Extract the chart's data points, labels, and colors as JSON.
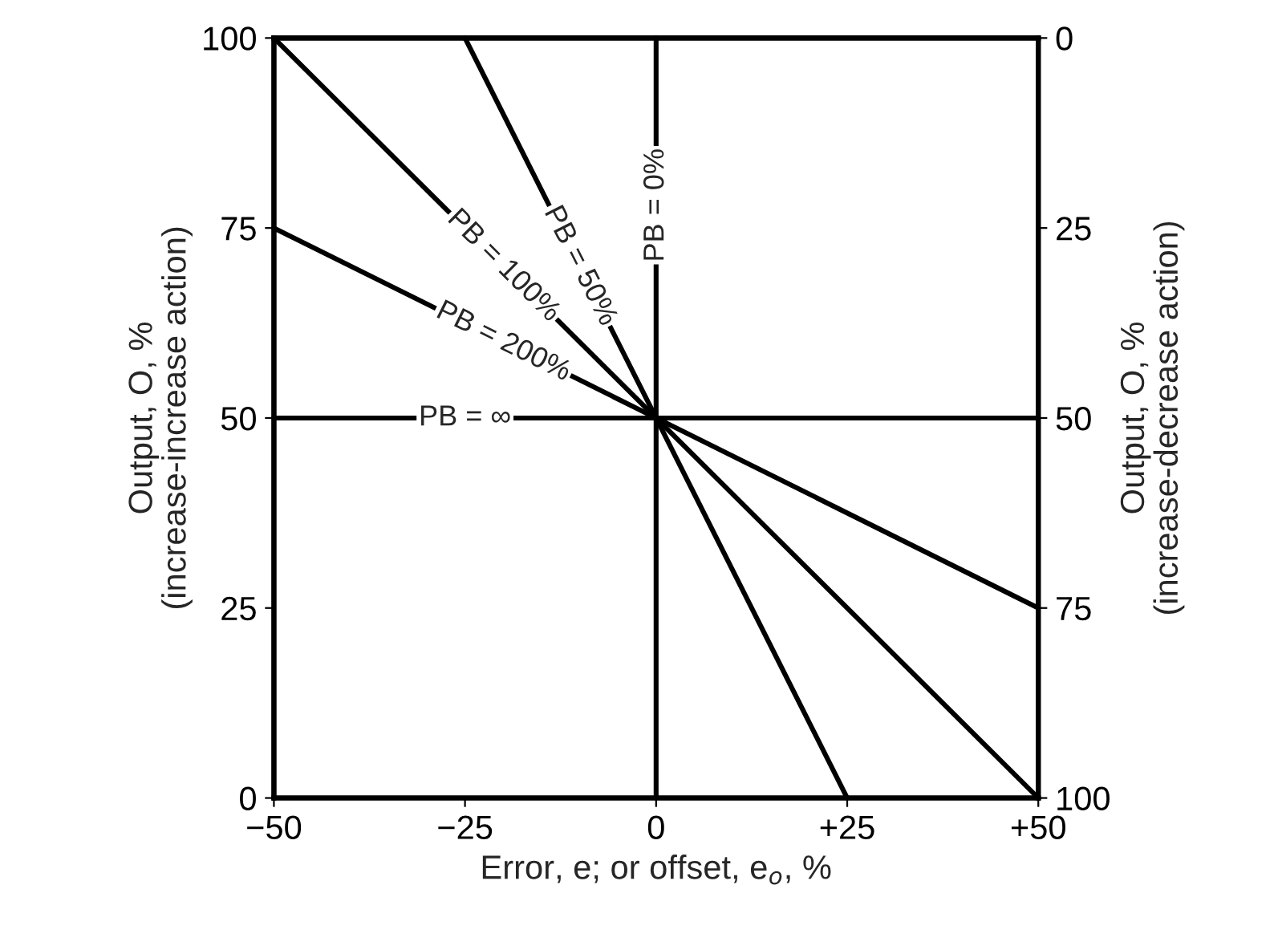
{
  "chart_data": {
    "type": "line",
    "xlabel": "Error, e; or offset, e$_{o}$, %",
    "ylabel": "Output, O, %\n(increase-increase action)",
    "y2label": "Output, O, %\n(increase-decrease action)",
    "xlim": [
      -50,
      50
    ],
    "xticks": [
      {
        "value": -50,
        "label": "−50"
      },
      {
        "value": -25,
        "label": "−25"
      },
      0,
      {
        "value": 25,
        "label": "+25"
      },
      {
        "value": 50,
        "label": "+50"
      }
    ],
    "ylim": [
      0,
      100
    ],
    "yticks": [
      0,
      25,
      50,
      75,
      100
    ],
    "y2lim": [
      100,
      0
    ],
    "y2ticks": [
      0,
      25,
      50,
      75,
      100
    ],
    "grid": false,
    "legend": false,
    "marker": "none",
    "line_style": "solid",
    "series": [
      {
        "name": "PB = 50%",
        "color": "#000000",
        "x": [
          -25,
          25
        ],
        "values": [
          100,
          0
        ]
      },
      {
        "name": "PB = 100%",
        "color": "#000000",
        "x": [
          -50,
          50
        ],
        "values": [
          100,
          0
        ]
      },
      {
        "name": "PB = 200%",
        "color": "#000000",
        "x": [
          -50,
          50
        ],
        "values": [
          75,
          25
        ]
      },
      {
        "name": "PB = ∞",
        "color": "#000000",
        "x": [
          -50,
          50
        ],
        "values": [
          50,
          50
        ]
      },
      {
        "name": "PB = 0%",
        "color": "#000000",
        "x": [
          0,
          0
        ],
        "values": [
          0,
          100
        ]
      }
    ]
  }
}
